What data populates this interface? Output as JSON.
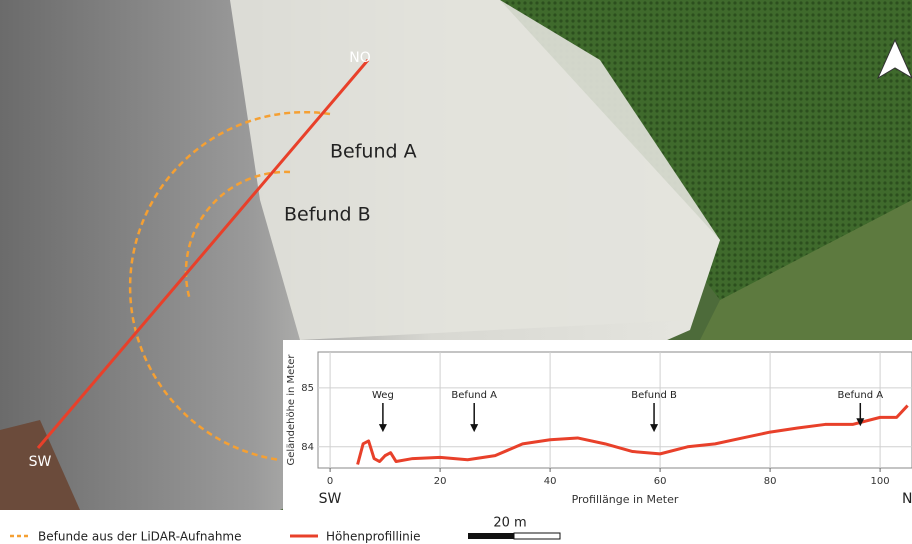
{
  "map": {
    "line_start": "SW",
    "line_end": "NO",
    "features": [
      "Befund A",
      "Befund B"
    ]
  },
  "legend": {
    "lidar": "Befunde aus der LiDAR-Aufnahme",
    "profile": "Höhenprofillinie"
  },
  "scale_bar": "20 m",
  "chart_data": {
    "type": "line",
    "ylabel": "Geländehöhe in Meter",
    "xlabel": "Profillänge in Meter",
    "start_label": "SW",
    "end_label": "NO",
    "x": [
      5,
      6,
      7,
      8,
      9,
      10,
      11,
      12,
      15,
      20,
      25,
      30,
      35,
      40,
      45,
      50,
      55,
      60,
      65,
      70,
      75,
      80,
      85,
      90,
      95,
      100,
      103,
      105
    ],
    "series": [
      {
        "color": "#e8402a",
        "values": [
          83.7,
          84.05,
          84.1,
          83.8,
          83.75,
          83.85,
          83.9,
          83.75,
          83.8,
          83.82,
          83.78,
          83.85,
          84.05,
          84.12,
          84.15,
          84.05,
          83.92,
          83.88,
          84.0,
          84.05,
          84.15,
          84.25,
          84.32,
          84.38,
          84.38,
          84.5,
          84.5,
          84.7
        ]
      }
    ],
    "xlim": [
      -2.2,
      105.8
    ],
    "xticks": [
      0,
      20,
      40,
      60,
      80,
      100
    ],
    "ylim": [
      83.64,
      85.61
    ],
    "yticks": [
      84,
      85
    ],
    "grid": true,
    "annotations": [
      {
        "text": "Weg",
        "x": 9.6,
        "y": 84.25
      },
      {
        "text": "Befund A",
        "x": 26.2,
        "y": 84.25
      },
      {
        "text": "Befund B",
        "x": 58.9,
        "y": 84.25
      },
      {
        "text": "Befund A",
        "x": 96.4,
        "y": 84.35
      }
    ]
  }
}
